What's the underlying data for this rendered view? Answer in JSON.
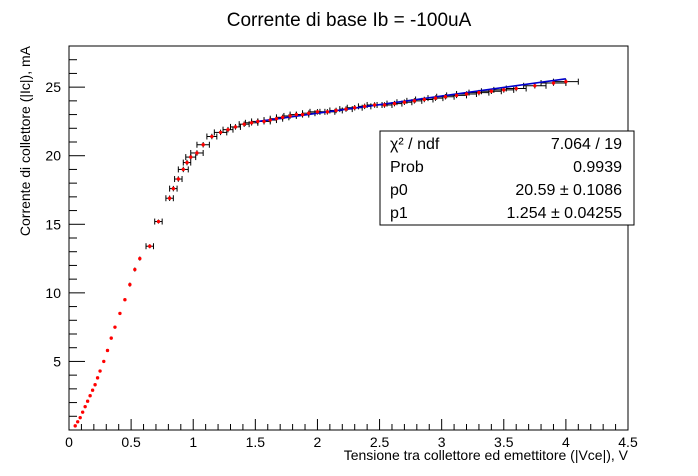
{
  "chart_data": {
    "type": "scatter",
    "title": "Corrente di base Ib = -100uA",
    "xlabel": "Tensione tra collettore ed emettitore (|Vce|), V",
    "ylabel": "Corrente di collettore (|Ic|), mA",
    "xlim": [
      0,
      4.5
    ],
    "ylim": [
      0,
      28
    ],
    "x_ticks": [
      0,
      0.5,
      1,
      1.5,
      2,
      2.5,
      3,
      3.5,
      4,
      4.5
    ],
    "x_tick_labels": [
      "0",
      "0.5",
      "1",
      "1.5",
      "2",
      "2.5",
      "3",
      "3.5",
      "4",
      "4.5"
    ],
    "y_ticks": [
      5,
      10,
      15,
      20,
      25
    ],
    "y_tick_labels": [
      "5",
      "10",
      "15",
      "20",
      "25"
    ],
    "grid": false,
    "marker_color": "#ff0000",
    "errorbar_color": "#000000",
    "fit_color": "#0000cc",
    "series": [
      {
        "x": [
          0.05,
          0.07,
          0.09,
          0.11,
          0.13,
          0.15,
          0.17,
          0.19,
          0.21,
          0.23,
          0.25,
          0.28,
          0.31,
          0.34,
          0.37,
          0.41,
          0.45,
          0.49,
          0.53,
          0.57,
          0.65,
          0.72,
          0.81,
          0.84,
          0.88,
          0.92,
          0.95,
          0.98,
          1.03,
          1.08,
          1.15,
          1.22,
          1.28,
          1.34,
          1.41,
          1.47,
          1.52,
          1.57,
          1.62,
          1.67,
          1.72,
          1.78,
          1.83,
          1.88,
          1.93,
          2.0,
          2.08,
          2.15,
          2.23,
          2.3,
          2.38,
          2.46,
          2.54,
          2.62,
          2.7,
          2.78,
          2.86,
          2.95,
          3.03,
          3.12,
          3.2,
          3.3,
          3.4,
          3.5,
          3.6,
          3.75,
          3.9,
          4.0
        ],
        "y": [
          0.3,
          0.6,
          0.9,
          1.3,
          1.7,
          2.1,
          2.5,
          2.9,
          3.3,
          3.8,
          4.3,
          5.0,
          5.8,
          6.7,
          7.5,
          8.5,
          9.5,
          10.6,
          11.7,
          12.5,
          13.4,
          15.2,
          16.9,
          17.6,
          18.3,
          19.0,
          19.5,
          19.9,
          20.2,
          20.8,
          21.4,
          21.7,
          21.9,
          22.1,
          22.3,
          22.4,
          22.5,
          22.5,
          22.6,
          22.7,
          22.8,
          22.9,
          23.0,
          23.0,
          23.1,
          23.2,
          23.2,
          23.3,
          23.4,
          23.5,
          23.6,
          23.7,
          23.7,
          23.8,
          23.9,
          24.0,
          24.1,
          24.2,
          24.3,
          24.4,
          24.5,
          24.6,
          24.7,
          24.8,
          24.9,
          25.1,
          25.3,
          25.4
        ],
        "xerr": [
          0,
          0,
          0,
          0,
          0,
          0,
          0,
          0,
          0,
          0,
          0,
          0,
          0,
          0,
          0,
          0,
          0,
          0,
          0,
          0,
          0.03,
          0.03,
          0.03,
          0.03,
          0.03,
          0.04,
          0.03,
          0.04,
          0.05,
          0.05,
          0.04,
          0.05,
          0.04,
          0.04,
          0.04,
          0.05,
          0.05,
          0.05,
          0.05,
          0.05,
          0.05,
          0.05,
          0.05,
          0.05,
          0.05,
          0.06,
          0.06,
          0.05,
          0.05,
          0.06,
          0.05,
          0.06,
          0.06,
          0.06,
          0.06,
          0.06,
          0.07,
          0.06,
          0.07,
          0.08,
          0.08,
          0.08,
          0.08,
          0.08,
          0.08,
          0.09,
          0.1,
          0.1
        ],
        "yerr": [
          0,
          0,
          0,
          0,
          0,
          0,
          0,
          0,
          0,
          0,
          0,
          0,
          0,
          0,
          0,
          0,
          0,
          0.15,
          0.15,
          0.15,
          0.15,
          0.15,
          0.2,
          0.2,
          0.2,
          0.2,
          0.2,
          0.2,
          0.2,
          0.2,
          0.2,
          0.2,
          0.2,
          0.2,
          0.2,
          0.2,
          0.2,
          0.2,
          0.2,
          0.2,
          0.2,
          0.2,
          0.2,
          0.2,
          0.2,
          0.2,
          0.2,
          0.2,
          0.2,
          0.2,
          0.2,
          0.2,
          0.2,
          0.2,
          0.2,
          0.2,
          0.2,
          0.2,
          0.2,
          0.2,
          0.2,
          0.2,
          0.2,
          0.2,
          0.2,
          0.2,
          0.2,
          0.2
        ]
      }
    ],
    "fit": {
      "p0": 20.59,
      "p1": 1.254,
      "x_range": [
        1.5,
        4.0
      ]
    },
    "stats_box": {
      "placement": "top-right",
      "rows": [
        {
          "label": "χ² / ndf",
          "value": "7.064 / 19"
        },
        {
          "label": "Prob",
          "value": "0.9939"
        },
        {
          "label": "p0",
          "value": "20.59 ± 0.1086"
        },
        {
          "label": "p1",
          "value": "1.254 ± 0.04255"
        }
      ]
    }
  }
}
